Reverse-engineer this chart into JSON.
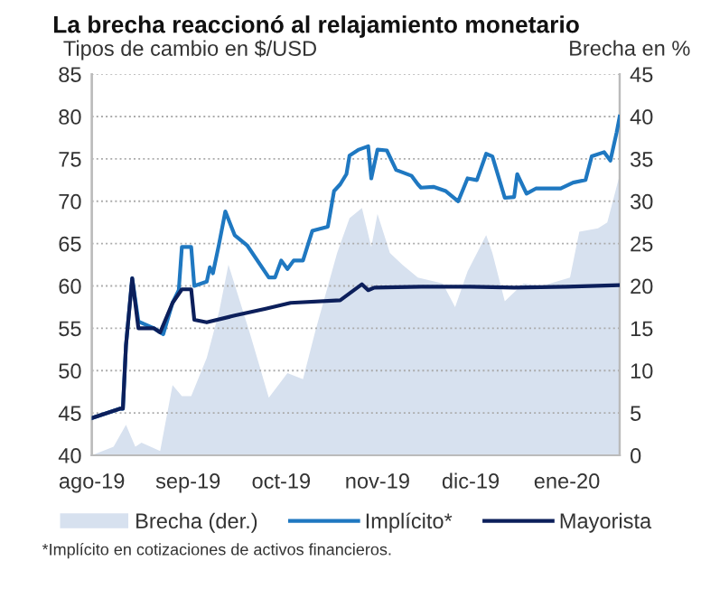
{
  "chart_data": {
    "type": "line",
    "title": "La brecha reaccionó al relajamiento monetario",
    "ylabel": "Tipos de cambio en $/USD",
    "y2label": "Brecha en %",
    "annotations": [
      "*Implícito en cotizaciones de activos financieros."
    ],
    "xlim": [
      "2019-08-01",
      "2020-01-18"
    ],
    "xticks": [
      {
        "value": "2019-08-01",
        "label": "ago-19"
      },
      {
        "value": "2019-09-01",
        "label": "sep-19"
      },
      {
        "value": "2019-10-01",
        "label": "oct-19"
      },
      {
        "value": "2019-11-01",
        "label": "nov-19"
      },
      {
        "value": "2019-12-01",
        "label": "dic-19"
      },
      {
        "value": "2020-01-01",
        "label": "ene-20"
      }
    ],
    "ylim": [
      40,
      85
    ],
    "yticks": [
      40,
      45,
      50,
      55,
      60,
      65,
      70,
      75,
      80,
      85
    ],
    "y2lim": [
      0,
      45
    ],
    "y2ticks": [
      0,
      5,
      10,
      15,
      20,
      25,
      30,
      35,
      40,
      45
    ],
    "grid": "y",
    "legend": "bottom",
    "series": [
      {
        "name": "Brecha (der.)",
        "type": "area",
        "axis": "y2",
        "color": "#d7e1ef",
        "x": [
          "2019-08-01",
          "2019-08-08",
          "2019-08-12",
          "2019-08-15",
          "2019-08-17",
          "2019-08-23",
          "2019-08-27",
          "2019-08-30",
          "2019-09-02",
          "2019-09-07",
          "2019-09-11",
          "2019-09-14",
          "2019-09-21",
          "2019-09-27",
          "2019-10-03",
          "2019-10-08",
          "2019-10-12",
          "2019-10-19",
          "2019-10-23",
          "2019-10-27",
          "2019-10-30",
          "2019-11-01",
          "2019-11-05",
          "2019-11-09",
          "2019-11-14",
          "2019-11-22",
          "2019-11-26",
          "2019-11-30",
          "2019-12-06",
          "2019-12-08",
          "2019-12-12",
          "2019-12-18",
          "2019-12-24",
          "2020-01-02",
          "2020-01-05",
          "2020-01-11",
          "2020-01-14",
          "2020-01-16",
          "2020-01-18"
        ],
        "values": [
          0,
          1,
          3.6,
          1,
          1.5,
          0.5,
          8.3,
          7,
          7,
          11.5,
          17,
          22.5,
          14.3,
          6.8,
          9.7,
          9,
          14.7,
          23.9,
          28,
          29.2,
          24.6,
          28.5,
          23.9,
          22.5,
          21,
          20.3,
          17.5,
          21.7,
          26,
          23.9,
          18.2,
          20.3,
          20,
          21,
          26.4,
          26.8,
          27.5,
          30.3,
          33.1
        ]
      },
      {
        "name": "Implícito*",
        "color": "#1f78c1",
        "x": [
          "2019-08-01",
          "2019-08-10",
          "2019-08-11",
          "2019-08-12",
          "2019-08-14",
          "2019-08-16",
          "2019-08-21",
          "2019-08-24",
          "2019-08-27",
          "2019-08-29",
          "2019-08-30",
          "2019-09-02",
          "2019-09-03",
          "2019-09-07",
          "2019-09-08",
          "2019-09-09",
          "2019-09-11",
          "2019-09-13",
          "2019-09-16",
          "2019-09-20",
          "2019-09-27",
          "2019-09-29",
          "2019-10-01",
          "2019-10-03",
          "2019-10-05",
          "2019-10-08",
          "2019-10-11",
          "2019-10-16",
          "2019-10-18",
          "2019-10-20",
          "2019-10-22",
          "2019-10-23",
          "2019-10-26",
          "2019-10-29",
          "2019-10-30",
          "2019-11-01",
          "2019-11-04",
          "2019-11-07",
          "2019-11-12",
          "2019-11-14",
          "2019-11-15",
          "2019-11-19",
          "2019-11-23",
          "2019-11-27",
          "2019-11-30",
          "2019-12-03",
          "2019-12-06",
          "2019-12-08",
          "2019-12-12",
          "2019-12-15",
          "2019-12-16",
          "2019-12-19",
          "2019-12-22",
          "2019-12-30",
          "2020-01-03",
          "2020-01-07",
          "2020-01-09",
          "2020-01-13",
          "2020-01-15",
          "2020-01-17",
          "2020-01-18"
        ],
        "values": [
          44.4,
          45.5,
          45.5,
          53,
          60.9,
          55.8,
          55,
          54.3,
          58,
          59.5,
          64.6,
          64.6,
          60,
          60.5,
          62.2,
          61.5,
          65,
          68.8,
          66,
          64.8,
          61,
          61,
          63,
          62,
          63,
          63,
          66.5,
          67,
          71.2,
          72,
          73.2,
          75.4,
          76.1,
          76.5,
          72.7,
          76.1,
          76,
          73.7,
          73,
          72,
          71.6,
          71.7,
          71.2,
          70,
          72.7,
          72.5,
          75.6,
          75.3,
          70.4,
          70.5,
          73.2,
          70.9,
          71.5,
          71.5,
          72.2,
          72.5,
          75.3,
          75.8,
          74.8,
          78.1,
          80
        ]
      },
      {
        "name": "Mayorista",
        "color": "#0c1f5b",
        "x": [
          "2019-08-01",
          "2019-08-10",
          "2019-08-11",
          "2019-08-12",
          "2019-08-14",
          "2019-08-16",
          "2019-08-21",
          "2019-08-23",
          "2019-08-27",
          "2019-08-30",
          "2019-09-02",
          "2019-09-03",
          "2019-09-07",
          "2019-09-16",
          "2019-09-26",
          "2019-10-04",
          "2019-10-20",
          "2019-10-27",
          "2019-10-29",
          "2019-10-31",
          "2019-11-15",
          "2019-12-01",
          "2019-12-15",
          "2020-01-01",
          "2020-01-18"
        ],
        "values": [
          44.4,
          45.5,
          45.5,
          53,
          60.9,
          55,
          55,
          54.5,
          58,
          59.6,
          59.6,
          56,
          55.7,
          56.5,
          57.3,
          58,
          58.3,
          60.2,
          59.5,
          59.8,
          59.9,
          59.9,
          59.8,
          59.9,
          60.1
        ]
      }
    ]
  }
}
